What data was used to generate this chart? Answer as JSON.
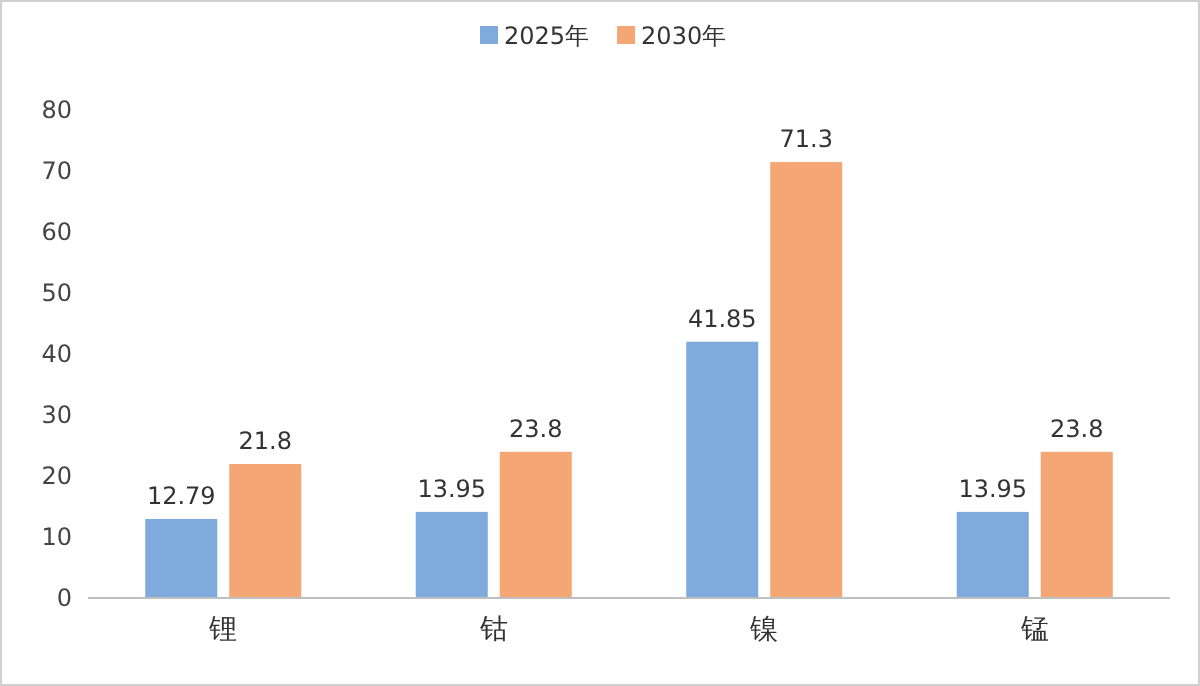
{
  "chart_data": {
    "type": "bar",
    "categories": [
      "锂",
      "钴",
      "镍",
      "锰"
    ],
    "series": [
      {
        "name": "2025年",
        "color": "#7eaadc",
        "values": [
          12.79,
          13.95,
          41.85,
          13.95
        ]
      },
      {
        "name": "2030年",
        "color": "#f4a774",
        "values": [
          21.8,
          23.8,
          71.3,
          23.8
        ]
      }
    ],
    "ylim": [
      0,
      80
    ],
    "yticks": [
      0,
      10,
      20,
      30,
      40,
      50,
      60,
      70,
      80
    ],
    "data_labels": true,
    "legend": "top",
    "grid": false
  }
}
